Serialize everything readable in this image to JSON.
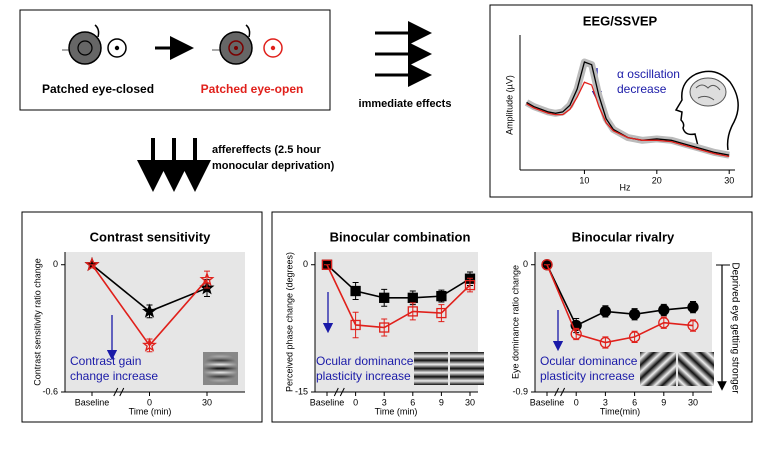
{
  "diagram": {
    "closed_label": "Patched eye-closed",
    "open_label": "Patched eye-open",
    "immediate": "immediate effects",
    "after_lines": [
      "affereffects (2.5 hour",
      "monocular deprivation)"
    ],
    "side_note": "Deprived eye getting stronger"
  },
  "chart_data": [
    {
      "type": "line",
      "title": "EEG/SSVEP",
      "xlabel": "Hz",
      "ylabel": "Amplitude (µV)",
      "annotation": [
        "α oscillation",
        "decrease"
      ],
      "x": [
        2,
        3,
        4,
        5,
        6,
        7,
        8,
        9,
        10,
        11,
        12,
        13,
        14,
        16,
        18,
        20,
        22,
        24,
        26,
        28,
        30
      ],
      "xlim": [
        1.1,
        30.8
      ],
      "xticks": [
        10,
        20,
        30
      ],
      "ylim": [
        0,
        1
      ],
      "series": [
        {
          "name": "Patched eye-closed",
          "color": "#000000",
          "values": [
            0.5,
            0.47,
            0.45,
            0.43,
            0.42,
            0.43,
            0.48,
            0.6,
            0.8,
            0.78,
            0.55,
            0.38,
            0.3,
            0.24,
            0.22,
            0.23,
            0.22,
            0.19,
            0.16,
            0.13,
            0.11
          ]
        },
        {
          "name": "Patched eye-open",
          "color": "#e0201b",
          "values": [
            0.49,
            0.46,
            0.44,
            0.42,
            0.41,
            0.41,
            0.45,
            0.54,
            0.65,
            0.63,
            0.47,
            0.35,
            0.29,
            0.24,
            0.22,
            0.22,
            0.21,
            0.18,
            0.15,
            0.12,
            0.1
          ]
        }
      ]
    },
    {
      "type": "line",
      "title": "Contrast sensitivity",
      "xlabel": "Time (min)",
      "ylabel": "Contrast sensitivity ratio change",
      "annotation": [
        "Contrast gain",
        "change increase"
      ],
      "categories": [
        "Baseline",
        "0",
        "30"
      ],
      "ylim": [
        -0.6,
        0.06
      ],
      "yticks": [
        0,
        -0.6
      ],
      "series": [
        {
          "name": "Patched eye-closed",
          "color": "#000000",
          "marker": "star",
          "filled": true,
          "values": [
            0,
            -0.22,
            -0.11
          ],
          "errors": [
            0,
            0.03,
            0.04
          ]
        },
        {
          "name": "Patched eye-open",
          "color": "#e0201b",
          "marker": "star",
          "filled": false,
          "values": [
            0,
            -0.38,
            -0.07
          ],
          "errors": [
            0,
            0.03,
            0.04
          ]
        }
      ]
    },
    {
      "type": "line",
      "title": "Binocular combination",
      "xlabel": "Time (min)",
      "ylabel": "Perceived phase change (degrees)",
      "annotation": [
        "Ocular dominance",
        "plasticity increase"
      ],
      "categories": [
        "Baseline",
        "0",
        "3",
        "6",
        "9",
        "30"
      ],
      "ylim": [
        -15,
        1.5
      ],
      "yticks": [
        0,
        -15
      ],
      "series": [
        {
          "name": "Patched eye-closed",
          "color": "#000000",
          "marker": "square",
          "filled": true,
          "values": [
            0,
            -3.1,
            -3.9,
            -3.9,
            -3.7,
            -1.65
          ],
          "errors": [
            0,
            1,
            1,
            0.8,
            0.7,
            0.8
          ]
        },
        {
          "name": "Patched eye-open",
          "color": "#e0201b",
          "marker": "square",
          "filled": false,
          "values": [
            0,
            -7.1,
            -7.4,
            -5.5,
            -5.7,
            -2.4
          ],
          "errors": [
            0,
            1.5,
            1,
            1,
            1,
            0.8
          ]
        }
      ]
    },
    {
      "type": "line",
      "title": "Binocular rivalry",
      "xlabel": "Time(min)",
      "ylabel": "Eye dominance ratio change",
      "annotation": [
        "Ocular dominance",
        "plasticity increase"
      ],
      "categories": [
        "Baseline",
        "0",
        "3",
        "6",
        "9",
        "30"
      ],
      "ylim": [
        -0.9,
        0.09
      ],
      "yticks": [
        0,
        -0.9
      ],
      "series": [
        {
          "name": "Patched eye-closed",
          "color": "#000000",
          "marker": "circle",
          "filled": true,
          "values": [
            0,
            -0.43,
            -0.33,
            -0.35,
            -0.32,
            -0.3
          ],
          "errors": [
            0,
            0.05,
            0.04,
            0.04,
            0.04,
            0.04
          ]
        },
        {
          "name": "Patched eye-open",
          "color": "#e0201b",
          "marker": "circle",
          "filled": false,
          "values": [
            0,
            -0.49,
            -0.55,
            -0.51,
            -0.41,
            -0.43
          ],
          "errors": [
            0,
            0.04,
            0.04,
            0.04,
            0.04,
            0.04
          ]
        }
      ]
    }
  ]
}
